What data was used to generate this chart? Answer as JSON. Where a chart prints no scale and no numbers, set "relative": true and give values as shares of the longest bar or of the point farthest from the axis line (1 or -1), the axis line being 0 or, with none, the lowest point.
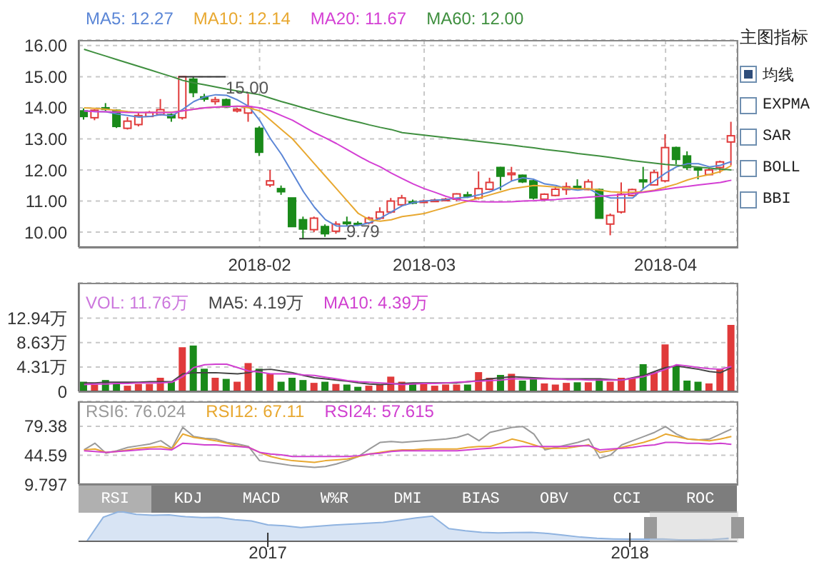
{
  "chart_data": [
    {
      "type": "candlestick",
      "categories": [
        null,
        null,
        null,
        null,
        null,
        null,
        null,
        null,
        null,
        null,
        null,
        null,
        null,
        null,
        null,
        null,
        "2018-02",
        null,
        null,
        null,
        null,
        null,
        null,
        null,
        null,
        null,
        null,
        null,
        null,
        null,
        null,
        "2018-03",
        null,
        null,
        null,
        null,
        null,
        null,
        null,
        null,
        null,
        null,
        null,
        null,
        null,
        null,
        null,
        null,
        null,
        null,
        null,
        null,
        null,
        "2018-04",
        null,
        null,
        null,
        null,
        null,
        null
      ],
      "ohlc": [
        [
          13.9,
          13.98,
          13.62,
          13.72
        ],
        [
          13.68,
          13.95,
          13.6,
          13.92
        ],
        [
          14.0,
          14.15,
          13.9,
          13.95
        ],
        [
          13.92,
          13.95,
          13.35,
          13.4
        ],
        [
          13.34,
          13.7,
          13.3,
          13.57
        ],
        [
          13.46,
          13.85,
          13.4,
          13.75
        ],
        [
          13.72,
          13.9,
          13.7,
          13.85
        ],
        [
          13.78,
          14.28,
          13.75,
          13.94
        ],
        [
          13.78,
          13.82,
          13.55,
          13.68
        ],
        [
          13.68,
          15.0,
          13.62,
          15.0
        ],
        [
          14.92,
          15.0,
          14.34,
          14.49
        ],
        [
          14.35,
          14.45,
          14.2,
          14.28
        ],
        [
          14.2,
          14.35,
          14.1,
          14.26
        ],
        [
          14.26,
          14.3,
          14.0,
          14.03
        ],
        [
          13.9,
          14.0,
          13.85,
          13.95
        ],
        [
          13.83,
          14.45,
          13.55,
          14.03
        ],
        [
          13.34,
          13.4,
          12.45,
          12.57
        ],
        [
          11.52,
          12.0,
          11.45,
          11.65
        ],
        [
          11.4,
          11.5,
          11.2,
          11.3
        ],
        [
          11.1,
          11.1,
          10.18,
          10.18
        ],
        [
          10.4,
          10.5,
          9.79,
          10.1
        ],
        [
          10.08,
          10.5,
          10.0,
          10.45
        ],
        [
          10.18,
          10.25,
          9.85,
          9.95
        ],
        [
          10.03,
          10.35,
          9.95,
          10.26
        ],
        [
          10.32,
          10.5,
          10.2,
          10.28
        ],
        [
          10.28,
          10.35,
          10.2,
          10.25
        ],
        [
          10.3,
          10.5,
          10.25,
          10.45
        ],
        [
          10.45,
          10.8,
          10.4,
          10.65
        ],
        [
          10.65,
          11.1,
          10.6,
          11.0
        ],
        [
          10.88,
          11.2,
          10.85,
          11.1
        ],
        [
          10.98,
          11.05,
          10.9,
          10.95
        ],
        [
          10.98,
          11.05,
          10.95,
          11.0
        ],
        [
          11.0,
          11.08,
          10.98,
          11.03
        ],
        [
          11.03,
          11.1,
          11.0,
          11.06
        ],
        [
          11.06,
          11.25,
          11.0,
          11.23
        ],
        [
          11.2,
          11.3,
          11.1,
          11.18
        ],
        [
          11.1,
          11.95,
          11.05,
          11.4
        ],
        [
          11.38,
          11.75,
          11.35,
          11.6
        ],
        [
          12.08,
          12.1,
          11.35,
          11.8
        ],
        [
          11.85,
          12.1,
          11.65,
          11.9
        ],
        [
          11.83,
          11.85,
          11.58,
          11.62
        ],
        [
          11.65,
          11.68,
          11.05,
          11.1
        ],
        [
          11.06,
          11.25,
          11.0,
          11.22
        ],
        [
          11.18,
          11.45,
          11.15,
          11.38
        ],
        [
          11.37,
          11.6,
          11.2,
          11.46
        ],
        [
          11.47,
          11.7,
          11.4,
          11.44
        ],
        [
          11.37,
          11.7,
          11.35,
          11.62
        ],
        [
          11.37,
          11.4,
          10.45,
          10.45
        ],
        [
          10.26,
          10.6,
          9.9,
          10.54
        ],
        [
          10.65,
          11.6,
          10.6,
          11.22
        ],
        [
          11.18,
          11.4,
          11.15,
          11.37
        ],
        [
          11.68,
          12.1,
          11.4,
          11.62
        ],
        [
          11.52,
          12.0,
          11.5,
          11.92
        ],
        [
          11.65,
          13.15,
          11.6,
          12.72
        ],
        [
          12.72,
          12.75,
          12.18,
          12.34
        ],
        [
          12.45,
          12.6,
          12.0,
          12.08
        ],
        [
          12.06,
          12.1,
          11.7,
          12.0
        ],
        [
          11.85,
          12.05,
          11.85,
          12.0
        ],
        [
          12.08,
          12.3,
          11.9,
          12.26
        ],
        [
          12.9,
          13.55,
          12.15,
          13.1
        ]
      ],
      "colors": [
        "#1a8a1a",
        "#e03a3a",
        "#1a8a1a",
        "#1a8a1a",
        "#e03a3a",
        "#e03a3a",
        "#e03a3a",
        "#e03a3a",
        "#1a8a1a",
        "#e03a3a",
        "#1a8a1a",
        "#1a8a1a",
        "#e03a3a",
        "#1a8a1a",
        "#e03a3a",
        "#e03a3a",
        "#1a8a1a",
        "#e03a3a",
        "#1a8a1a",
        "#1a8a1a",
        "#1a8a1a",
        "#e03a3a",
        "#1a8a1a",
        "#e03a3a",
        "#1a8a1a",
        "#1a8a1a",
        "#e03a3a",
        "#e03a3a",
        "#e03a3a",
        "#e03a3a",
        "#1a8a1a",
        "#e03a3a",
        "#e03a3a",
        "#e03a3a",
        "#e03a3a",
        "#1a8a1a",
        "#e03a3a",
        "#e03a3a",
        "#1a8a1a",
        "#e03a3a",
        "#1a8a1a",
        "#1a8a1a",
        "#e03a3a",
        "#e03a3a",
        "#e03a3a",
        "#1a8a1a",
        "#e03a3a",
        "#1a8a1a",
        "#e03a3a",
        "#e03a3a",
        "#e03a3a",
        "#1a8a1a",
        "#e03a3a",
        "#e03a3a",
        "#1a8a1a",
        "#1a8a1a",
        "#1a8a1a",
        "#e03a3a",
        "#e03a3a",
        "#e03a3a"
      ],
      "series": [
        {
          "name": "MA5: 12.27",
          "type": "line",
          "color": "#5b86d6",
          "values": [
            13.9,
            13.88,
            13.87,
            13.8,
            13.75,
            13.7,
            13.72,
            13.78,
            13.74,
            13.95,
            14.2,
            14.35,
            14.42,
            14.4,
            14.25,
            14.05,
            13.6,
            13.0,
            12.5,
            11.9,
            11.3,
            10.8,
            10.4,
            10.2,
            10.2,
            10.22,
            10.3,
            10.45,
            10.65,
            10.85,
            10.95,
            11.0,
            11.03,
            11.05,
            11.1,
            11.12,
            11.2,
            11.3,
            11.45,
            11.65,
            11.75,
            11.7,
            11.55,
            11.5,
            11.4,
            11.35,
            11.4,
            11.2,
            11.1,
            11.1,
            11.1,
            11.4,
            11.65,
            11.9,
            12.1,
            12.2,
            12.2,
            12.1,
            12.15,
            12.27
          ]
        },
        {
          "name": "MA10: 12.14",
          "type": "line",
          "color": "#e8a830",
          "values": [
            14.0,
            13.98,
            13.95,
            13.92,
            13.88,
            13.85,
            13.85,
            13.86,
            13.86,
            13.9,
            13.95,
            14.0,
            14.02,
            14.04,
            14.05,
            14.0,
            13.9,
            13.6,
            13.3,
            13.0,
            12.6,
            12.2,
            11.8,
            11.4,
            11.0,
            10.6,
            10.4,
            10.35,
            10.4,
            10.5,
            10.55,
            10.6,
            10.7,
            10.8,
            10.9,
            11.0,
            11.1,
            11.2,
            11.3,
            11.4,
            11.45,
            11.5,
            11.48,
            11.45,
            11.42,
            11.4,
            11.4,
            11.35,
            11.3,
            11.28,
            11.28,
            11.3,
            11.35,
            11.45,
            11.55,
            11.68,
            11.78,
            11.85,
            11.95,
            12.14
          ]
        },
        {
          "name": "MA20: 11.67",
          "type": "line",
          "color": "#d43fd4",
          "values": [
            13.9,
            13.88,
            13.87,
            13.86,
            13.85,
            13.85,
            13.85,
            13.85,
            13.85,
            13.9,
            13.95,
            14.0,
            14.02,
            14.04,
            14.05,
            14.05,
            14.0,
            13.9,
            13.75,
            13.6,
            13.4,
            13.2,
            13.03,
            12.85,
            12.65,
            12.45,
            12.26,
            12.1,
            11.9,
            11.72,
            11.55,
            11.4,
            11.28,
            11.15,
            11.05,
            11.0,
            10.98,
            10.97,
            10.97,
            10.98,
            11.0,
            11.01,
            11.03,
            11.05,
            11.08,
            11.1,
            11.13,
            11.15,
            11.18,
            11.2,
            11.24,
            11.28,
            11.33,
            11.38,
            11.43,
            11.47,
            11.52,
            11.56,
            11.6,
            11.67
          ]
        },
        {
          "name": "MA60: 12.00",
          "type": "line",
          "color": "#3f8f3f",
          "values": [
            15.88,
            15.77,
            15.66,
            15.55,
            15.44,
            15.33,
            15.22,
            15.11,
            15.0,
            14.88,
            14.8,
            14.74,
            14.67,
            14.6,
            14.54,
            14.48,
            14.42,
            14.31,
            14.2,
            14.1,
            14.0,
            13.9,
            13.8,
            13.71,
            13.62,
            13.54,
            13.45,
            13.37,
            13.3,
            13.2,
            13.16,
            13.12,
            13.08,
            13.04,
            13.0,
            12.96,
            12.92,
            12.88,
            12.84,
            12.8,
            12.75,
            12.71,
            12.66,
            12.62,
            12.58,
            12.53,
            12.49,
            12.45,
            12.4,
            12.35,
            12.3,
            12.26,
            12.22,
            12.18,
            12.15,
            12.12,
            12.09,
            12.06,
            12.03,
            12.0
          ]
        }
      ],
      "annotations": [
        "15.00",
        "9.79"
      ],
      "ylim": [
        9.52,
        16.18
      ],
      "yticks": [
        {
          "value": 10,
          "label": "10.00"
        },
        {
          "value": 11,
          "label": "11.00"
        },
        {
          "value": 12,
          "label": "12.00"
        },
        {
          "value": 13,
          "label": "13.00"
        },
        {
          "value": 14,
          "label": "14.00"
        },
        {
          "value": 15,
          "label": "15.00"
        },
        {
          "value": 16,
          "label": "16.00"
        }
      ],
      "grid": true,
      "legend": "top left"
    },
    {
      "type": "other",
      "title": "主图指标",
      "annotations": [
        "均线",
        "EXPMA",
        "SAR",
        "BOLL",
        "BBI"
      ]
    },
    {
      "type": "bar",
      "categories": [
        null,
        null,
        null,
        null,
        null,
        null,
        null,
        null,
        null,
        null,
        null,
        null,
        null,
        null,
        null,
        null,
        "2018-02",
        null,
        null,
        null,
        null,
        null,
        null,
        null,
        null,
        null,
        null,
        null,
        null,
        null,
        null,
        "2018-03",
        null,
        null,
        null,
        null,
        null,
        null,
        null,
        null,
        null,
        null,
        null,
        null,
        null,
        null,
        null,
        null,
        null,
        null,
        null,
        null,
        null,
        "2018-04",
        null,
        null,
        null,
        null,
        null,
        null
      ],
      "series": [
        {
          "name": "VOL: 11.76万",
          "type": "bar",
          "color": "#cc77dd",
          "colors": [
            "#1a8a1a",
            "#e03a3a",
            "#1a8a1a",
            "#1a8a1a",
            "#e03a3a",
            "#e03a3a",
            "#e03a3a",
            "#e03a3a",
            "#1a8a1a",
            "#e03a3a",
            "#1a8a1a",
            "#1a8a1a",
            "#e03a3a",
            "#1a8a1a",
            "#e03a3a",
            "#e03a3a",
            "#1a8a1a",
            "#e03a3a",
            "#1a8a1a",
            "#1a8a1a",
            "#1a8a1a",
            "#e03a3a",
            "#1a8a1a",
            "#e03a3a",
            "#1a8a1a",
            "#1a8a1a",
            "#e03a3a",
            "#e03a3a",
            "#e03a3a",
            "#e03a3a",
            "#1a8a1a",
            "#e03a3a",
            "#e03a3a",
            "#e03a3a",
            "#e03a3a",
            "#1a8a1a",
            "#e03a3a",
            "#e03a3a",
            "#1a8a1a",
            "#e03a3a",
            "#1a8a1a",
            "#1a8a1a",
            "#e03a3a",
            "#e03a3a",
            "#e03a3a",
            "#1a8a1a",
            "#e03a3a",
            "#1a8a1a",
            "#e03a3a",
            "#e03a3a",
            "#e03a3a",
            "#1a8a1a",
            "#e03a3a",
            "#e03a3a",
            "#1a8a1a",
            "#1a8a1a",
            "#1a8a1a",
            "#e03a3a",
            "#e03a3a",
            "#e03a3a"
          ],
          "values": [
            1.7,
            1.2,
            2.0,
            1.4,
            1.0,
            1.3,
            1.3,
            2.4,
            1.7,
            7.8,
            8.1,
            4.0,
            2.4,
            2.2,
            1.7,
            5.0,
            4.0,
            3.1,
            1.7,
            2.4,
            2.0,
            1.5,
            1.7,
            1.3,
            1.2,
            0.8,
            1.0,
            1.2,
            2.6,
            1.7,
            1.5,
            1.5,
            1.0,
            1.2,
            1.2,
            1.2,
            3.4,
            2.4,
            2.9,
            3.1,
            1.9,
            2.4,
            1.4,
            1.2,
            1.5,
            1.6,
            1.6,
            2.2,
            1.7,
            2.4,
            2.4,
            4.8,
            3.4,
            8.3,
            4.5,
            1.9,
            1.7,
            1.4,
            4.0,
            11.76
          ]
        },
        {
          "name": "MA5: 4.19万",
          "type": "line",
          "color": "#444444",
          "values": [
            1.5,
            1.5,
            1.6,
            1.6,
            1.6,
            1.6,
            1.7,
            1.7,
            1.7,
            3.1,
            3.3,
            3.3,
            3.3,
            3.2,
            3.1,
            3.3,
            3.8,
            3.9,
            3.6,
            3.3,
            2.8,
            2.4,
            2.2,
            2.0,
            1.8,
            1.5,
            1.3,
            1.2,
            1.3,
            1.4,
            1.5,
            1.5,
            1.5,
            1.5,
            1.5,
            1.7,
            1.9,
            2.2,
            2.4,
            2.6,
            2.5,
            2.4,
            2.3,
            2.2,
            2.2,
            2.2,
            2.2,
            2.2,
            2.1,
            2.0,
            2.4,
            2.8,
            3.5,
            4.2,
            4.5,
            4.2,
            3.9,
            3.5,
            3.3,
            4.19
          ]
        },
        {
          "name": "MA10: 4.39万",
          "type": "line",
          "color": "#d040d0",
          "values": [
            1.2,
            1.3,
            1.3,
            1.4,
            1.4,
            1.5,
            1.5,
            1.5,
            1.6,
            2.6,
            4.2,
            4.7,
            4.8,
            4.8,
            4.2,
            3.6,
            3.4,
            3.1,
            3.1,
            3.1,
            2.9,
            2.8,
            2.5,
            2.2,
            1.9,
            1.7,
            1.6,
            1.5,
            1.4,
            1.2,
            1.3,
            1.4,
            1.4,
            1.5,
            1.6,
            1.7,
            1.8,
            1.9,
            2.0,
            2.2,
            2.2,
            2.2,
            2.2,
            2.2,
            2.1,
            2.1,
            2.0,
            2.0,
            2.0,
            2.0,
            2.3,
            2.6,
            3.2,
            3.9,
            4.7,
            4.5,
            4.2,
            4.0,
            3.9,
            4.39
          ]
        }
      ],
      "ylim": [
        0,
        19.2
      ],
      "yticks": [
        0,
        {
          "value": 4.31,
          "label": "4.31万"
        },
        {
          "value": 8.63,
          "label": "8.63万"
        },
        {
          "value": 12.94,
          "label": "12.94万"
        }
      ],
      "grid": true,
      "legend": "top left",
      "tick_labels": "y"
    },
    {
      "type": "line",
      "categories": [
        null,
        null,
        null,
        null,
        null,
        null,
        null,
        null,
        null,
        null,
        null,
        null,
        null,
        null,
        null,
        null,
        "2018-02",
        null,
        null,
        null,
        null,
        null,
        null,
        null,
        null,
        null,
        null,
        null,
        null,
        null,
        null,
        "2018-03",
        null,
        null,
        null,
        null,
        null,
        null,
        null,
        null,
        null,
        null,
        null,
        null,
        null,
        null,
        null,
        null,
        null,
        null,
        null,
        null,
        null,
        "2018-04",
        null,
        null,
        null,
        null,
        null,
        null
      ],
      "series": [
        {
          "name": "RSI6: 76.024",
          "color": "#9a9a9a",
          "values": [
            51,
            59,
            47,
            50,
            54,
            56,
            58,
            62,
            53,
            78,
            67,
            65,
            64,
            60,
            58,
            55,
            38,
            36,
            34,
            32,
            31,
            30,
            31,
            34,
            38,
            43,
            52,
            60,
            61,
            60,
            61,
            62,
            63,
            64,
            66,
            70,
            62,
            72,
            75,
            78,
            79,
            70,
            51,
            54,
            57,
            60,
            64,
            41,
            45,
            57,
            62,
            67,
            72,
            79,
            70,
            64,
            63,
            64,
            70,
            76.024
          ]
        },
        {
          "name": "RSI12: 67.11",
          "color": "#e8a830",
          "values": [
            51,
            52,
            48,
            49,
            51,
            53,
            54,
            55,
            52,
            70,
            66,
            64,
            62,
            59,
            56,
            54,
            48,
            43,
            40,
            38,
            37,
            36,
            38,
            39,
            40,
            43,
            46,
            48,
            50,
            51,
            51,
            52,
            52,
            52,
            52,
            54,
            55,
            55,
            59,
            64,
            61,
            57,
            53,
            53,
            53,
            55,
            57,
            48,
            50,
            54,
            57,
            60,
            64,
            70,
            67,
            64,
            63,
            62,
            64,
            67.11
          ]
        },
        {
          "name": "RSI24: 57.615",
          "color": "#d040d0",
          "values": [
            50,
            49,
            48,
            49,
            50,
            51,
            52,
            52,
            51,
            59,
            58,
            57,
            57,
            56,
            55,
            54,
            48,
            46,
            45,
            43,
            43,
            43,
            43,
            43,
            43,
            44,
            46,
            47,
            49,
            50,
            50,
            50,
            50,
            50,
            50,
            51,
            52,
            53,
            54,
            54,
            55,
            55,
            55,
            55,
            55,
            56,
            56,
            51,
            52,
            53,
            54,
            56,
            57,
            60,
            60,
            59,
            59,
            58,
            59,
            57.615
          ]
        }
      ],
      "ylim": [
        9.797,
        109.3
      ],
      "yticks": [
        9.797,
        44.59,
        79.38
      ],
      "grid": true,
      "legend": "top left",
      "tick_labels": "y"
    },
    {
      "type": "other",
      "annotations": [
        "RSI",
        "KDJ",
        "MACD",
        "W%R",
        "DMI",
        "BIAS",
        "OBV",
        "CCI",
        "ROC"
      ]
    },
    {
      "type": "area",
      "relative": true,
      "color": "#8fb3e0",
      "categories": [
        null,
        null,
        null,
        null,
        null,
        null,
        null,
        null,
        null,
        null,
        null,
        "2017",
        null,
        null,
        null,
        null,
        null,
        null,
        null,
        null,
        null,
        null,
        null,
        null,
        null,
        null,
        null,
        null,
        null,
        null,
        null,
        null,
        null,
        "2018",
        null,
        null,
        null,
        null,
        null,
        null
      ],
      "values": [
        0,
        0.8,
        1.0,
        0.9,
        0.87,
        0.88,
        0.82,
        0.79,
        0.8,
        0.72,
        0.68,
        0.55,
        0.52,
        0.46,
        0.5,
        0.54,
        0.57,
        0.6,
        0.63,
        0.7,
        0.78,
        0.84,
        0.42,
        0.35,
        0.3,
        0.28,
        0.29,
        0.3,
        0.26,
        0.2,
        0.14,
        0.1,
        0.08,
        0.07,
        0.07,
        0.08,
        0.05,
        0.05,
        0.06,
        0.1
      ]
    }
  ]
}
